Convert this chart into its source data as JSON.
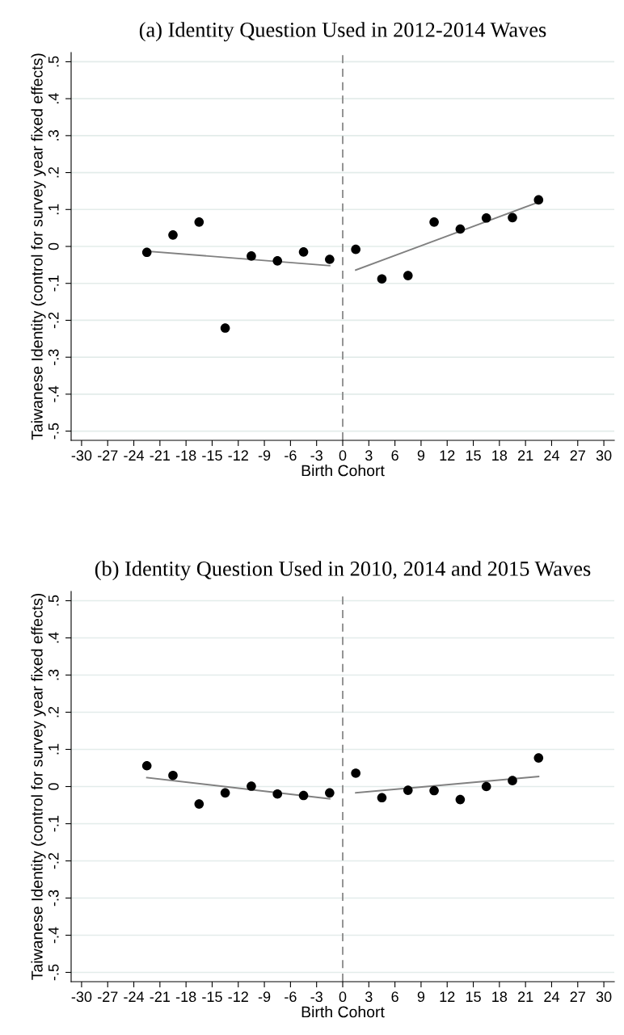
{
  "chart_data": [
    {
      "type": "scatter",
      "title": "(a) Identity Question Used in 2012-2014 Waves",
      "xlabel": "Birth Cohort",
      "ylabel": "Taiwanese Identity (control for survey year fixed effects)",
      "xlim": [
        -31.2,
        31.2
      ],
      "xticks": [
        -30,
        -27,
        -24,
        -21,
        -18,
        -15,
        -12,
        -9,
        -6,
        -3,
        0,
        3,
        6,
        9,
        12,
        15,
        18,
        21,
        24,
        27,
        30
      ],
      "ylim": [
        -0.525,
        0.525
      ],
      "yticks": [
        {
          "value": -0.5,
          "label": "-.5"
        },
        {
          "value": -0.4,
          "label": "-.4"
        },
        {
          "value": -0.3,
          "label": "-.3"
        },
        {
          "value": -0.2,
          "label": "-.2"
        },
        {
          "value": -0.1,
          "label": "-.1"
        },
        0,
        {
          "value": 0.1,
          "label": ".1"
        },
        {
          "value": 0.2,
          "label": ".2"
        },
        {
          "value": 0.3,
          "label": ".3"
        },
        {
          "value": 0.4,
          "label": ".4"
        },
        {
          "value": 0.5,
          "label": ".5"
        }
      ],
      "grid": "y",
      "ref_lines": [
        {
          "axis": "x",
          "value": 0,
          "color": "#808080",
          "line_style": "dashed"
        }
      ],
      "series": [
        {
          "color": "#000000",
          "marker": "circle",
          "x": [
            -22.5,
            -19.5,
            -16.5,
            -13.5,
            -10.5,
            -7.5,
            -4.5,
            -1.5,
            1.5,
            4.5,
            7.5,
            10.5,
            13.5,
            16.5,
            19.5,
            22.5
          ],
          "values": [
            -0.016,
            0.031,
            0.066,
            -0.221,
            -0.026,
            -0.039,
            -0.015,
            -0.035,
            -0.008,
            -0.088,
            -0.079,
            0.066,
            0.047,
            0.077,
            0.078,
            0.126
          ]
        },
        {
          "type": "line",
          "color": "#808080",
          "x": [
            -22.5,
            -1.5
          ],
          "values": [
            -0.013,
            -0.052
          ]
        },
        {
          "type": "line",
          "color": "#808080",
          "x": [
            1.5,
            22.5
          ],
          "values": [
            -0.064,
            0.12
          ]
        }
      ]
    },
    {
      "type": "scatter",
      "title": "(b) Identity Question Used in 2010, 2014 and 2015 Waves",
      "xlabel": "Birth Cohort",
      "ylabel": "Taiwanese Identity (control for survey year fixed effects)",
      "xlim": [
        -31.2,
        31.2
      ],
      "xticks": [
        -30,
        -27,
        -24,
        -21,
        -18,
        -15,
        -12,
        -9,
        -6,
        -3,
        0,
        3,
        6,
        9,
        12,
        15,
        18,
        21,
        24,
        27,
        30
      ],
      "ylim": [
        -0.525,
        0.525
      ],
      "yticks": [
        {
          "value": -0.5,
          "label": "-.5"
        },
        {
          "value": -0.4,
          "label": "-.4"
        },
        {
          "value": -0.3,
          "label": "-.3"
        },
        {
          "value": -0.2,
          "label": "-.2"
        },
        {
          "value": -0.1,
          "label": "-.1"
        },
        0,
        {
          "value": 0.1,
          "label": ".1"
        },
        {
          "value": 0.2,
          "label": ".2"
        },
        {
          "value": 0.3,
          "label": ".3"
        },
        {
          "value": 0.4,
          "label": ".4"
        },
        {
          "value": 0.5,
          "label": ".5"
        }
      ],
      "grid": "y",
      "ref_lines": [
        {
          "axis": "x",
          "value": 0,
          "color": "#808080",
          "line_style": "dashed"
        }
      ],
      "series": [
        {
          "color": "#000000",
          "marker": "circle",
          "x": [
            -22.5,
            -19.5,
            -16.5,
            -13.5,
            -10.5,
            -7.5,
            -4.5,
            -1.5,
            1.5,
            4.5,
            7.5,
            10.5,
            13.5,
            16.5,
            19.5,
            22.5
          ],
          "values": [
            0.056,
            0.03,
            -0.047,
            -0.017,
            0.001,
            -0.02,
            -0.024,
            -0.017,
            0.036,
            -0.03,
            -0.01,
            -0.011,
            -0.035,
            0.0,
            0.016,
            0.077
          ]
        },
        {
          "type": "line",
          "color": "#808080",
          "x": [
            -22.5,
            -1.5
          ],
          "values": [
            0.024,
            -0.033
          ]
        },
        {
          "type": "line",
          "color": "#808080",
          "x": [
            1.5,
            22.5
          ],
          "values": [
            -0.017,
            0.027
          ]
        }
      ]
    }
  ]
}
